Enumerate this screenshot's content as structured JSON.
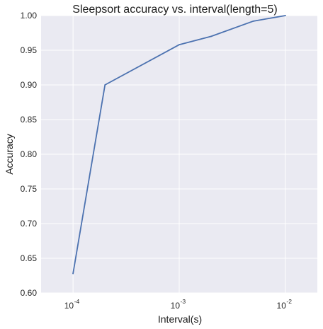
{
  "chart_data": {
    "type": "line",
    "title": "Sleepsort accuracy vs. interval(length=5)",
    "xlabel": "Interval(s)",
    "ylabel": "Accuracy",
    "xscale": "log",
    "xlim": [
      5e-05,
      0.02
    ],
    "ylim": [
      0.6,
      1.0
    ],
    "grid": true,
    "legend": "none",
    "x": [
      0.0001,
      0.0002,
      0.001,
      0.002,
      0.005,
      0.01
    ],
    "series": [
      {
        "values": [
          0.628,
          0.9,
          0.958,
          0.97,
          0.992,
          1.0
        ],
        "color": "#4C72B0"
      }
    ],
    "x_ticks": [
      {
        "value": 0.0001,
        "base": "10",
        "exp": "-4"
      },
      {
        "value": 0.001,
        "base": "10",
        "exp": "-3"
      },
      {
        "value": 0.01,
        "base": "10",
        "exp": "-2"
      }
    ],
    "y_ticks": [
      "0.60",
      "0.65",
      "0.70",
      "0.75",
      "0.80",
      "0.85",
      "0.90",
      "0.95",
      "1.00"
    ],
    "colors": {
      "plot_background": "#EAEAF2",
      "grid": "#FFFFFF",
      "line": "#4C72B0"
    }
  }
}
